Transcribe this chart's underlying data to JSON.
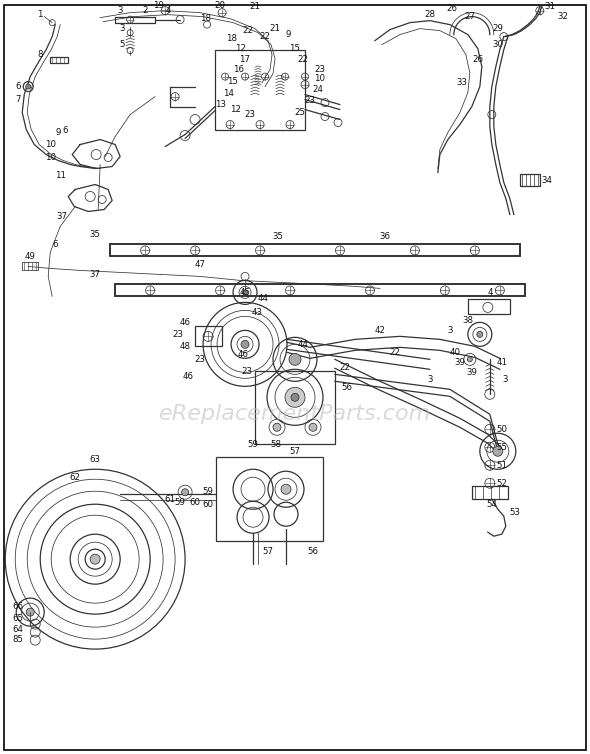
{
  "bg_color": "#ffffff",
  "line_color": "#333333",
  "label_color": "#111111",
  "watermark": "eReplacementParts.com",
  "watermark_color": "#bbbbbb",
  "border_color": "#000000",
  "fig_width": 5.9,
  "fig_height": 7.54,
  "dpi": 100,
  "lw_main": 0.9,
  "lw_thin": 0.55,
  "lw_thick": 1.4,
  "fs_label": 6.2
}
